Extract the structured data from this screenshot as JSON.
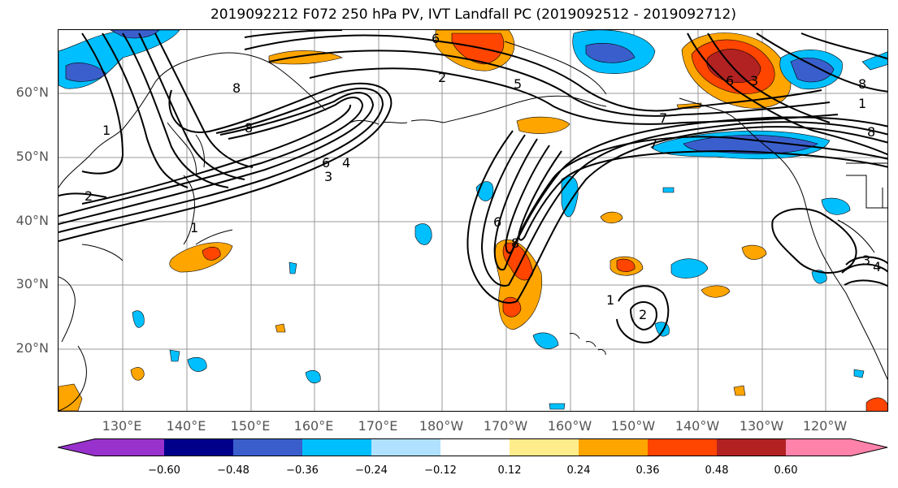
{
  "title": "2019092212 F072 250 hPa PV, IVT Landfall PC (2019092512 - 2019092712)",
  "lat_labels": [
    "60°N",
    "50°N",
    "40°N",
    "30°N",
    "20°N"
  ],
  "lon_labels": [
    "130°E",
    "140°E",
    "150°E",
    "160°E",
    "170°E",
    "180°W",
    "170°W",
    "160°W",
    "150°W",
    "140°W",
    "130°W",
    "120°W"
  ],
  "contour_labels": [
    "1",
    "2",
    "3",
    "4",
    "5",
    "6",
    "7",
    "8"
  ],
  "colorbar": {
    "ticks": [
      "−0.60",
      "−0.48",
      "−0.36",
      "−0.24",
      "−0.12",
      "0.12",
      "0.24",
      "0.36",
      "0.48",
      "0.60"
    ],
    "colors": [
      "#9932cc",
      "#00008b",
      "#3a5fcd",
      "#00bfff",
      "#b0e2ff",
      "#ffffff",
      "#ffec8b",
      "#ffa500",
      "#ff4500",
      "#b22222",
      "#ff82ab"
    ]
  }
}
